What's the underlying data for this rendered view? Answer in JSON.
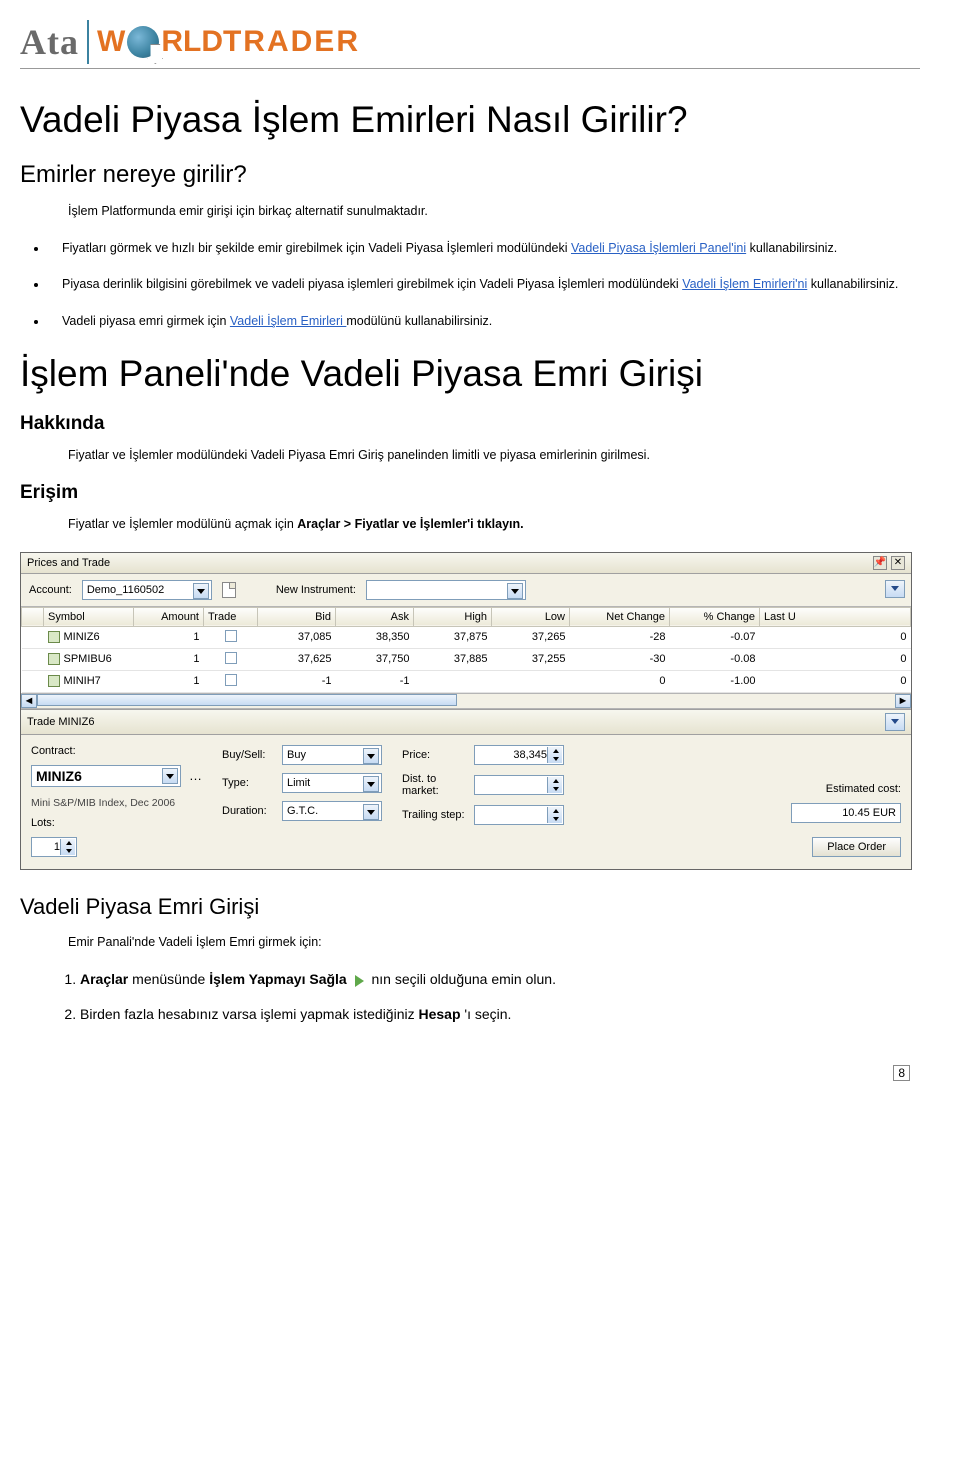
{
  "logo": {
    "ata": "Ata",
    "w": "W",
    "rld": "RLD",
    "trader": "TRADER"
  },
  "title": "Vadeli Piyasa İşlem Emirleri Nasıl Girilir?",
  "where_h": "Emirler nereye girilir?",
  "where_p": "İşlem Platformunda emir girişi için birkaç alternatif sunulmaktadır.",
  "bul1a": "Fiyatları görmek ve hızlı bir şekilde emir girebilmek için Vadeli Piyasa İşlemleri modülündeki ",
  "bul1link": "Vadeli Piyasa İşlemleri Panel'ini",
  "bul1b": " kullanabilirsiniz.",
  "bul2a": "Piyasa derinlik bilgisini görebilmek ve vadeli piyasa işlemleri girebilmek için Vadeli Piyasa İşlemleri modülündeki ",
  "bul2link": "Vadeli İşlem Emirleri'ni",
  "bul2b": " kullanabilirsiniz.",
  "bul3a": "Vadeli piyasa emri girmek için ",
  "bul3link": "Vadeli İşlem Emirleri ",
  "bul3b": "modülünü kullanabilirsiniz.",
  "panel_h": "İşlem Paneli'nde Vadeli Piyasa Emri Girişi",
  "about_h": "Hakkında",
  "about_p": "Fiyatlar ve İşlemler modülündeki Vadeli Piyasa Emri Giriş panelinden limitli ve piyasa emirlerinin girilmesi.",
  "access_h": "Erişim",
  "access_p_a": "Fiyatlar ve İşlemler modülünü açmak için ",
  "access_p_b": "Araçlar > Fiyatlar ve İşlemler'i tıklayın.",
  "app": {
    "title": "Prices and Trade",
    "account_lbl": "Account:",
    "account_val": "Demo_1160502",
    "newinst_lbl": "New Instrument:",
    "newinst_val": "",
    "cols": [
      "",
      "Symbol",
      "Amount",
      "Trade",
      "Bid",
      "Ask",
      "High",
      "Low",
      "Net Change",
      "% Change",
      "Last U"
    ],
    "rows": [
      {
        "sym": "MINIZ6",
        "amt": "1",
        "bid": "37,085",
        "ask": "38,350",
        "high": "37,875",
        "low": "37,265",
        "net": "-28",
        "pct": "-0.07",
        "last": "0"
      },
      {
        "sym": "SPMIBU6",
        "amt": "1",
        "bid": "37,625",
        "ask": "37,750",
        "high": "37,885",
        "low": "37,255",
        "net": "-30",
        "pct": "-0.08",
        "last": "0"
      },
      {
        "sym": "MINIH7",
        "amt": "1",
        "bid": "-1",
        "ask": "-1",
        "high": "",
        "low": "",
        "net": "0",
        "pct": "-1.00",
        "last": "0"
      }
    ],
    "trade_title": "Trade MINIZ6",
    "contract_lbl": "Contract:",
    "contract_val": "MINIZ6",
    "contract_note": "Mini S&P/MIB Index, Dec 2006",
    "lots_lbl": "Lots:",
    "lots_val": "1",
    "buysell_lbl": "Buy/Sell:",
    "buysell_val": "Buy",
    "type_lbl": "Type:",
    "type_val": "Limit",
    "dur_lbl": "Duration:",
    "dur_val": "G.T.C.",
    "price_lbl": "Price:",
    "price_val": "38,345",
    "dist_lbl": "Dist. to market:",
    "dist_val": "",
    "trail_lbl": "Trailing step:",
    "trail_val": "",
    "est_lbl": "Estimated cost:",
    "est_val": "10.45 EUR",
    "place_btn": "Place Order"
  },
  "emri_h": "Vadeli Piyasa Emri Girişi",
  "emri_p": "Emir Panali'nde Vadeli İşlem Emri girmek için:",
  "step1a": "Araçlar",
  "step1b": " menüsünde ",
  "step1c": "İşlem Yapmayı Sağla",
  "step1d": " nın seçili olduğuna emin olun.",
  "step2a": "Birden fazla hesabınız varsa işlemi yapmak istediğiniz ",
  "step2b": "Hesap",
  "step2c": "'ı seçin.",
  "pagenum": "8"
}
